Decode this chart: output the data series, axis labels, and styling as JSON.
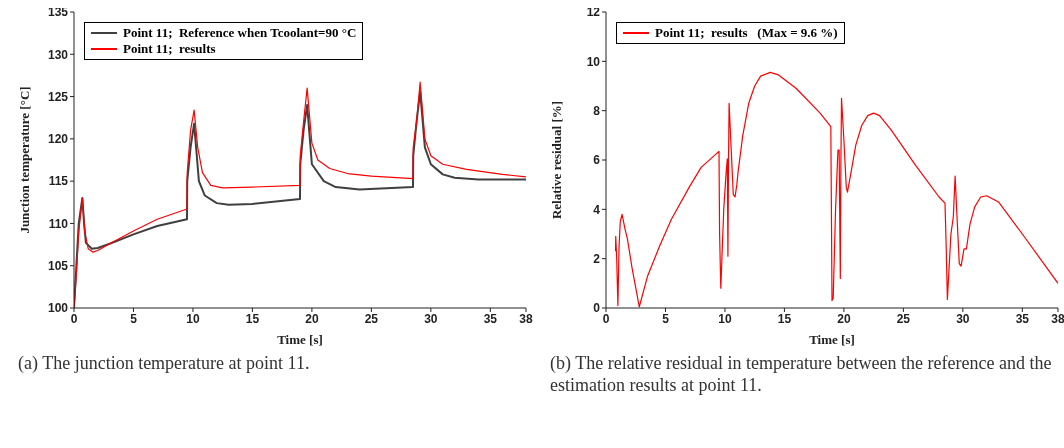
{
  "chart_data": [
    {
      "type": "line",
      "xlabel": "Time [s]",
      "ylabel": "Junction temperature [°C]",
      "xlim": [
        0,
        38
      ],
      "xticks": [
        0,
        5,
        10,
        15,
        20,
        25,
        30,
        35,
        38
      ],
      "ylim": [
        100,
        135
      ],
      "yticks": [
        100,
        105,
        110,
        115,
        120,
        125,
        130,
        135
      ],
      "legend": "top left",
      "marker": "none",
      "line_style": "solid",
      "annotations": [
        "(a) The junction temperature at point 11."
      ],
      "series": [
        {
          "name": "Point 11;  Reference when Tcoolant=90 °C",
          "color": "#404040",
          "x": [
            0,
            0.2,
            0.4,
            0.7,
            0.85,
            1.0,
            1.5,
            2,
            3,
            5,
            7,
            9.5,
            9.52,
            9.8,
            10.1,
            10.5,
            11,
            12,
            13,
            15,
            19,
            19.02,
            19.3,
            19.6,
            20,
            21,
            22,
            24,
            28.5,
            28.52,
            28.8,
            29.1,
            29.5,
            30,
            31,
            32,
            34,
            36,
            38
          ],
          "values": [
            100,
            105,
            110,
            113,
            110,
            107.7,
            107,
            107.1,
            107.6,
            108.7,
            109.7,
            110.5,
            115,
            119,
            121.8,
            115,
            113.3,
            112.4,
            112.2,
            112.3,
            112.9,
            117,
            121,
            124,
            117,
            115,
            114.3,
            114,
            114.3,
            118,
            122,
            125.6,
            119,
            117,
            115.8,
            115.4,
            115.2,
            115.2,
            115.2
          ]
        },
        {
          "name": "Point 11;  results",
          "color": "#ff0000",
          "x": [
            0,
            0.2,
            0.4,
            0.7,
            0.9,
            1.2,
            1.6,
            2,
            3,
            5,
            7,
            9.5,
            9.52,
            9.8,
            10.1,
            10.4,
            10.8,
            11.5,
            12.5,
            15,
            19,
            19.02,
            19.3,
            19.6,
            20,
            20.5,
            21.5,
            23,
            25,
            28.5,
            28.52,
            28.8,
            29.1,
            29.5,
            30,
            31,
            33,
            36,
            38
          ],
          "values": [
            100,
            104,
            109,
            113,
            109,
            107,
            106.6,
            106.8,
            107.6,
            109.1,
            110.5,
            111.7,
            116,
            121,
            123.4,
            119,
            116,
            114.5,
            114.2,
            114.3,
            114.5,
            118,
            122,
            126,
            119.5,
            117.5,
            116.5,
            115.9,
            115.6,
            115.3,
            119,
            122,
            126.7,
            120,
            118,
            117,
            116.4,
            115.8,
            115.5
          ]
        }
      ]
    },
    {
      "type": "line",
      "xlabel": "Time [s]",
      "ylabel": "Relative residual [%]",
      "xlim": [
        0,
        38
      ],
      "xticks": [
        0,
        5,
        10,
        15,
        20,
        25,
        30,
        35,
        38
      ],
      "ylim": [
        0,
        12
      ],
      "yticks": [
        0,
        2,
        4,
        6,
        8,
        10,
        12
      ],
      "legend": "top left",
      "marker": "none",
      "line_style": "solid",
      "annotations": [
        "(b) The relative residual in temperature between the reference and the estimation results at point 11."
      ],
      "series": [
        {
          "name": "Point 11;  results   (Max = 9.6 %)",
          "color": "#ff0000",
          "x": [
            0.8,
            0.82,
            0.9,
            1.0,
            1.1,
            1.2,
            1.35,
            1.6,
            1.8,
            2.2,
            2.8,
            3.5,
            4.5,
            5.5,
            7,
            8,
            9.5,
            9.55,
            9.65,
            9.9,
            10.1,
            10.2,
            10.25,
            10.3,
            10.35,
            10.5,
            10.7,
            10.85,
            11,
            11.1,
            11.5,
            12,
            12.5,
            13,
            13.8,
            14.5,
            16,
            18,
            18.9,
            18.95,
            19.0,
            19.1,
            19.3,
            19.5,
            19.6,
            19.7,
            19.75,
            19.8,
            20,
            20.2,
            20.3,
            20.6,
            21,
            21.5,
            22,
            22.5,
            23,
            24,
            26,
            28,
            28.5,
            28.6,
            28.7,
            29.0,
            29.2,
            29.35,
            29.5,
            29.7,
            29.85,
            30.1,
            30.3,
            30.6,
            31,
            31.5,
            32,
            33,
            35,
            38
          ],
          "values": [
            2.3,
            2.9,
            2.0,
            0.1,
            2.5,
            3.5,
            3.8,
            3.2,
            2.8,
            1.6,
            0.05,
            1.3,
            2.5,
            3.6,
            4.9,
            5.7,
            6.35,
            3,
            0.8,
            4,
            5.5,
            6.05,
            2.1,
            6,
            8.3,
            6.7,
            4.6,
            4.5,
            5.0,
            5.5,
            7,
            8.3,
            9.0,
            9.4,
            9.55,
            9.45,
            8.9,
            7.9,
            7.35,
            4,
            0.3,
            0.4,
            4,
            6.4,
            6.4,
            1.2,
            6,
            8.5,
            6.8,
            4.9,
            4.7,
            5.5,
            6.6,
            7.4,
            7.8,
            7.9,
            7.8,
            7.2,
            5.8,
            4.5,
            4.25,
            2.5,
            0.35,
            3.0,
            3.7,
            5.35,
            3.8,
            1.8,
            1.7,
            2.4,
            2.4,
            3.4,
            4.1,
            4.5,
            4.55,
            4.3,
            3.0,
            1.0
          ]
        }
      ]
    }
  ]
}
